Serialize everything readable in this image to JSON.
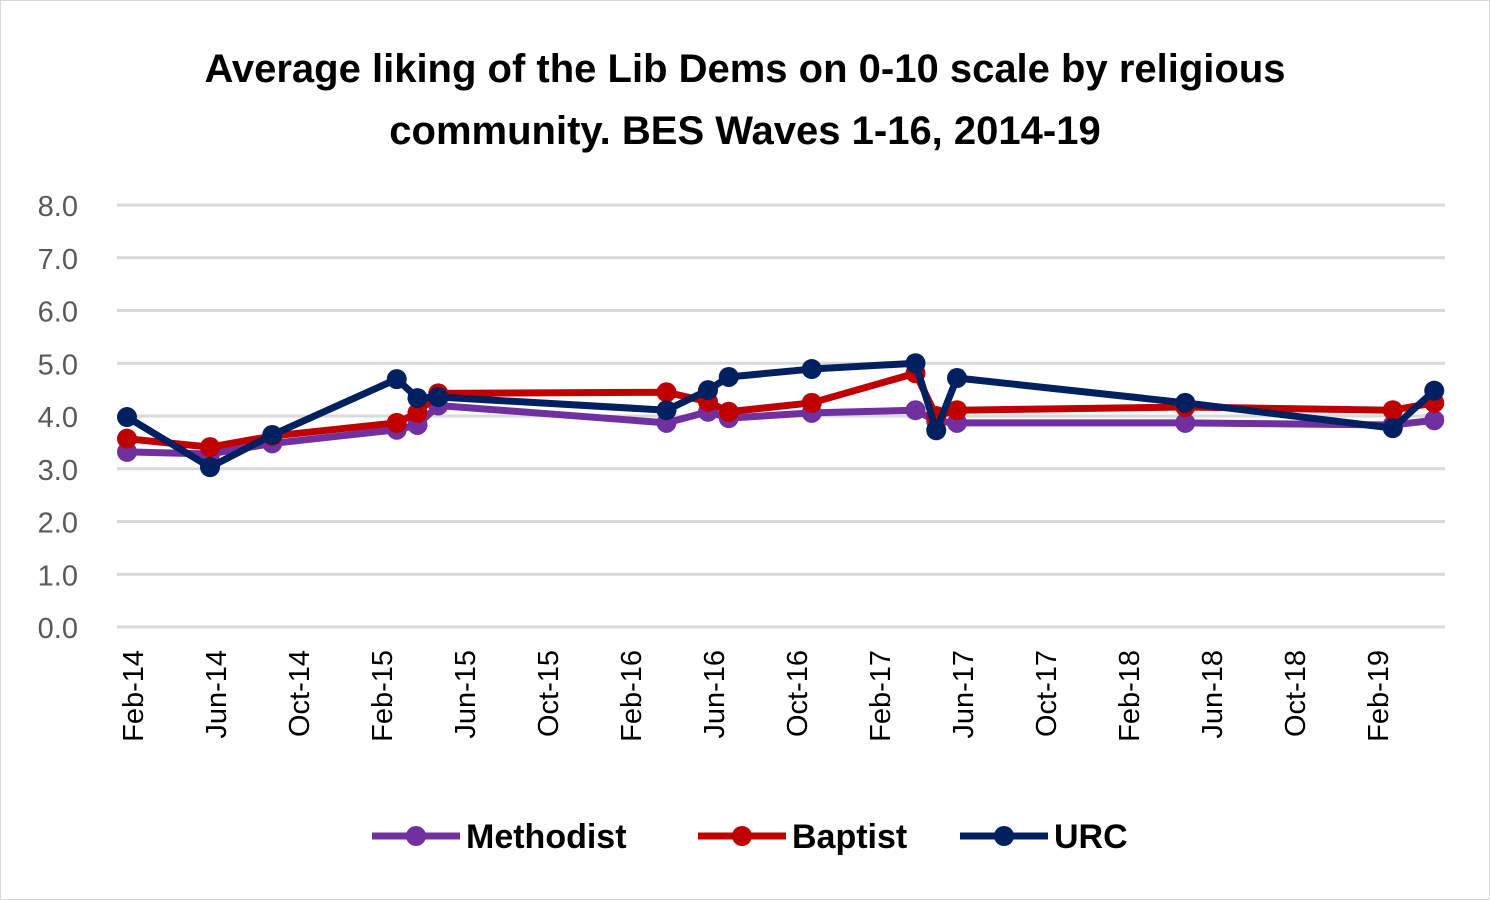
{
  "chart_data": {
    "type": "line",
    "title": "Average liking of the Lib Dems on 0-10 scale by religious community. BES Waves 1-16, 2014-19",
    "title_lines": [
      "Average liking of the Lib Dems on 0-10 scale by religious",
      "community. BES Waves 1-16, 2014-19"
    ],
    "xlabel": "",
    "ylabel": "",
    "ylim": [
      0,
      8
    ],
    "yticks": [
      "0.0",
      "1.0",
      "2.0",
      "3.0",
      "4.0",
      "5.0",
      "6.0",
      "7.0",
      "8.0"
    ],
    "xticks": [
      "Feb-14",
      "Jun-14",
      "Oct-14",
      "Feb-15",
      "Jun-15",
      "Oct-15",
      "Feb-16",
      "Jun-16",
      "Oct-16",
      "Feb-17",
      "Jun-17",
      "Oct-17",
      "Feb-18",
      "Jun-18",
      "Oct-18",
      "Feb-19"
    ],
    "x_unit": "months since Feb-14",
    "x": [
      0,
      4,
      7,
      13,
      14,
      15,
      26,
      28,
      29,
      33,
      38,
      39,
      40,
      51,
      61,
      63
    ],
    "x_dates": [
      "Feb-14",
      "Jun-14",
      "Sep-14",
      "Mar-15",
      "Apr-15",
      "May-15",
      "Apr-16",
      "Jun-16",
      "Jul-16",
      "Nov-16",
      "Apr-17",
      "May-17",
      "Jun-17",
      "May-18",
      "Mar-19",
      "May-19"
    ],
    "grid": true,
    "legend": "bottom",
    "series": [
      {
        "name": "Methodist",
        "color": "#7030a0",
        "values": [
          3.32,
          3.28,
          3.48,
          3.74,
          3.83,
          4.2,
          3.87,
          4.08,
          3.96,
          4.06,
          4.11,
          3.9,
          3.87,
          3.87,
          3.83,
          3.92
        ]
      },
      {
        "name": "Baptist",
        "color": "#c00000",
        "values": [
          3.57,
          3.41,
          3.62,
          3.87,
          4.06,
          4.43,
          4.45,
          4.27,
          4.08,
          4.25,
          4.81,
          4.0,
          4.11,
          4.17,
          4.11,
          4.25
        ]
      },
      {
        "name": "URC",
        "color": "#002060",
        "values": [
          3.98,
          3.03,
          3.64,
          4.7,
          4.34,
          4.36,
          4.11,
          4.49,
          4.74,
          4.89,
          5.0,
          3.73,
          4.72,
          4.25,
          3.77,
          4.48
        ]
      }
    ]
  }
}
